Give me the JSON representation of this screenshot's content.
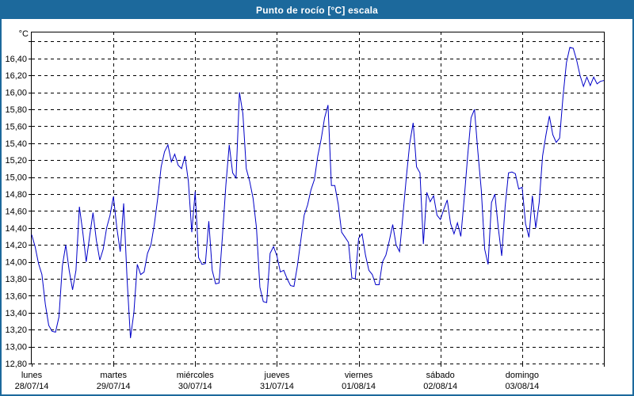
{
  "title": "Punto de rocío [°C] escala",
  "colors": {
    "frame_blue": "#1c699c",
    "line_blue": "#0000c8",
    "grid_color": "#000000",
    "background": "#ffffff",
    "title_text": "#ffffff"
  },
  "y_axis": {
    "unit_label": "°C",
    "plot_top_value": 16.716,
    "plot_bottom_value": 12.8,
    "top_gridline_value": 16.6,
    "ticks": [
      {
        "value": 16.4,
        "label": "16,40"
      },
      {
        "value": 16.2,
        "label": "16,20"
      },
      {
        "value": 16.0,
        "label": "16,00"
      },
      {
        "value": 15.8,
        "label": "15,80"
      },
      {
        "value": 15.6,
        "label": "15,60"
      },
      {
        "value": 15.4,
        "label": "15,40"
      },
      {
        "value": 15.2,
        "label": "15,20"
      },
      {
        "value": 15.0,
        "label": "15,00"
      },
      {
        "value": 14.8,
        "label": "14,80"
      },
      {
        "value": 14.6,
        "label": "14,60"
      },
      {
        "value": 14.4,
        "label": "14,40"
      },
      {
        "value": 14.2,
        "label": "14,20"
      },
      {
        "value": 14.0,
        "label": "14,00"
      },
      {
        "value": 13.8,
        "label": "13,80"
      },
      {
        "value": 13.6,
        "label": "13,60"
      },
      {
        "value": 13.4,
        "label": "13,40"
      },
      {
        "value": 13.2,
        "label": "13,20"
      },
      {
        "value": 13.0,
        "label": "13,00"
      },
      {
        "value": 12.8,
        "label": "12,80"
      }
    ]
  },
  "x_axis": {
    "days": [
      {
        "name": "lunes",
        "date": "28/07/14"
      },
      {
        "name": "martes",
        "date": "29/07/14"
      },
      {
        "name": "miércoles",
        "date": "30/07/14"
      },
      {
        "name": "jueves",
        "date": "31/07/14"
      },
      {
        "name": "viernes",
        "date": "01/08/14"
      },
      {
        "name": "sábado",
        "date": "02/08/14"
      },
      {
        "name": "domingo",
        "date": "03/08/14"
      }
    ]
  },
  "chart_data": {
    "type": "line",
    "title": "Punto de rocío [°C] escala",
    "ylabel": "°C",
    "ylim": [
      12.8,
      16.716
    ],
    "grid": "dashed",
    "legend": "none",
    "sampling": "hourly",
    "points_per_day": 24,
    "categories_days": [
      "lunes 28/07/14",
      "martes 29/07/14",
      "miércoles 30/07/14",
      "jueves 31/07/14",
      "viernes 01/08/14",
      "sábado 02/08/14",
      "domingo 03/08/14"
    ],
    "values": [
      14.32,
      14.18,
      13.98,
      13.85,
      13.5,
      13.25,
      13.18,
      13.17,
      13.35,
      13.95,
      14.2,
      13.9,
      13.67,
      13.9,
      14.65,
      14.35,
      14.0,
      14.3,
      14.58,
      14.25,
      14.02,
      14.15,
      14.4,
      14.55,
      14.77,
      14.4,
      14.12,
      14.69,
      13.8,
      13.1,
      13.4,
      13.97,
      13.85,
      13.88,
      14.1,
      14.2,
      14.44,
      14.75,
      15.12,
      15.3,
      15.38,
      15.18,
      15.27,
      15.14,
      15.1,
      15.25,
      14.95,
      14.35,
      14.83,
      14.05,
      13.97,
      13.98,
      14.48,
      13.9,
      13.74,
      13.75,
      14.3,
      14.9,
      15.38,
      15.05,
      14.99,
      16.0,
      15.75,
      15.1,
      14.95,
      14.75,
      14.4,
      13.7,
      13.53,
      13.52,
      14.1,
      14.18,
      14.07,
      13.88,
      13.9,
      13.8,
      13.72,
      13.71,
      13.95,
      14.25,
      14.55,
      14.67,
      14.85,
      14.97,
      15.25,
      15.45,
      15.7,
      15.85,
      14.9,
      14.9,
      14.68,
      14.35,
      14.29,
      14.23,
      13.81,
      13.8,
      14.28,
      14.33,
      14.08,
      13.9,
      13.85,
      13.73,
      13.73,
      14.0,
      14.08,
      14.25,
      14.44,
      14.2,
      14.12,
      14.55,
      15.0,
      15.4,
      15.64,
      15.12,
      15.05,
      14.21,
      14.82,
      14.71,
      14.78,
      14.55,
      14.5,
      14.62,
      14.73,
      14.45,
      14.33,
      14.46,
      14.3,
      14.75,
      15.25,
      15.7,
      15.8,
      15.3,
      14.85,
      14.15,
      13.97,
      14.7,
      14.8,
      14.4,
      14.07,
      14.65,
      15.05,
      15.06,
      15.04,
      14.86,
      14.88,
      14.45,
      14.29,
      14.78,
      14.4,
      14.7,
      15.25,
      15.5,
      15.72,
      15.5,
      15.41,
      15.46,
      15.95,
      16.35,
      16.53,
      16.52,
      16.38,
      16.2,
      16.07,
      16.18,
      16.08,
      16.18,
      16.1,
      16.13,
      16.14
    ]
  }
}
